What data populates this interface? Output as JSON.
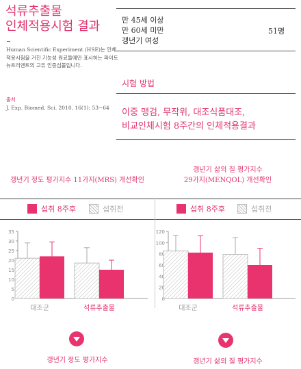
{
  "product": {
    "title": "석류추출물\n인체적용시험 결과"
  },
  "study": {
    "description": "Human Scientific Experiment (HSE)는 인체적용시험을 거친 기능성 원료들에만 표시하는 파이토뉴트리엔트의 고유 인증심볼입니다.",
    "source_label": "출처",
    "source_text": "J. Exp. Biomed. Sci. 2010, 16(1): 53~64",
    "target_line1": "만 45세 이상",
    "target_line2": "만 60세 미만",
    "target_line3": "갱년기 여성",
    "target_count": "51명",
    "method_title": "시험 방법",
    "method_text": "이중 맹검, 무작위, 대조식품대조,\n비교인체시험 8주간의 인체적용결과"
  },
  "legend": {
    "after": "섭취 8주후",
    "before": "섭취전"
  },
  "colors": {
    "accent": "#e8336e",
    "hatch": "#bbbbbb"
  },
  "chart_data": [
    {
      "type": "bar",
      "title": "갱년기 정도 평가지수 11가지(MRS) 개선확인",
      "categories": [
        "대조군",
        "석류추출물"
      ],
      "ylim": [
        0,
        35
      ],
      "yticks": [
        0,
        5,
        10,
        15,
        20,
        25,
        30,
        35
      ],
      "series": [
        {
          "name": "섭취전",
          "values": [
            21,
            18.5
          ],
          "errors": [
            8,
            8
          ]
        },
        {
          "name": "섭취 8주후",
          "values": [
            22,
            15
          ],
          "errors": [
            7.5,
            5
          ]
        }
      ],
      "footer": "갱년기 정도 평가지수"
    },
    {
      "type": "bar",
      "title": "갱년기 삶의 질 평가지수\n29가지(MENQOL) 개선확인",
      "categories": [
        "대조군",
        "석류추출물"
      ],
      "ylim": [
        0,
        120
      ],
      "yticks": [
        0,
        20,
        40,
        60,
        80,
        100,
        120
      ],
      "series": [
        {
          "name": "섭취전",
          "values": [
            85,
            79
          ],
          "errors": [
            28,
            30
          ]
        },
        {
          "name": "섭취 8주후",
          "values": [
            82,
            60
          ],
          "errors": [
            30,
            30
          ]
        }
      ],
      "footer": "갱년기 삶의 질 평가지수"
    }
  ]
}
